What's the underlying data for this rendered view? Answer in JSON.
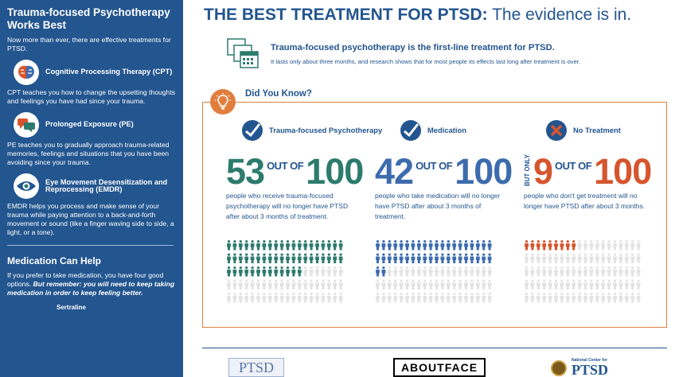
{
  "sidebar": {
    "title": "Trauma-focused Psychotherapy Works Best",
    "intro": "Now more than ever, there are effective treatments for PTSD.",
    "therapies": [
      {
        "name": "Cognitive Processing Therapy (CPT)",
        "desc": "CPT teaches you how to change the upsetting thoughts and feelings you have had since your trauma.",
        "icon": "brain-icon"
      },
      {
        "name": "Prolonged Exposure (PE)",
        "desc": "PE teaches you to gradually approach trauma-related memories, feelings and situations that you have been avoiding since your trauma.",
        "icon": "speech-bubbles-icon"
      },
      {
        "name": "Eye Movement Desensitization and Reprocessing (EMDR)",
        "desc": "EMDR helps you process and make sense of your trauma while paying attention to a back-and-forth movement or sound (like a finger waving side to side, a light, or a tone).",
        "icon": "eye-icon"
      }
    ],
    "med_title": "Medication Can Help",
    "med_text": "If you prefer to take medication, you have four good options.",
    "med_emph": "But remember: you will need to keep taking medication in order to keep feeling better.",
    "med_first": "Sertraline"
  },
  "header": {
    "title_bold": "THE BEST TREATMENT FOR PTSD:",
    "title_rest": "The evidence is in.",
    "sub_bold": "Trauma-focused psychotherapy is the first-line treatment for PTSD.",
    "sub_text": "It lasts only about three months, and research shows that for most people its effects last long after treatment is over.",
    "calendar_icon": "calendar-icon"
  },
  "did_you_know": {
    "label": "Did You Know?",
    "icon": "lightbulb-icon",
    "out_of": "OUT OF",
    "but_only": "BUT ONLY",
    "columns": [
      {
        "label": "Trauma-focused Psychotherapy",
        "icon": "checkmark-icon",
        "value": 53,
        "total": 100,
        "color": "#2d7b6d",
        "text": "people who receive trauma-focused psychotherapy will no longer have PTSD after about 3 months of treatment."
      },
      {
        "label": "Medication",
        "icon": "checkmark-icon",
        "value": 42,
        "total": 100,
        "color": "#3d6cae",
        "text": "people who take medication will no longer have PTSD after about 3 months of treatment."
      },
      {
        "label": "No Treatment",
        "icon": "x-icon",
        "value": 9,
        "total": 100,
        "color": "#d6552e",
        "text": "people who don't get treatment will no longer have PTSD after about 3 months."
      }
    ]
  },
  "footer": {
    "logo1": "PTSD",
    "logo2": "ABOUTFACE",
    "logo3_small": "National Center for",
    "logo3_big": "PTSD"
  },
  "colors": {
    "navy": "#23558f",
    "orange": "#e17e3d",
    "inactive": "#e3e3e3"
  }
}
